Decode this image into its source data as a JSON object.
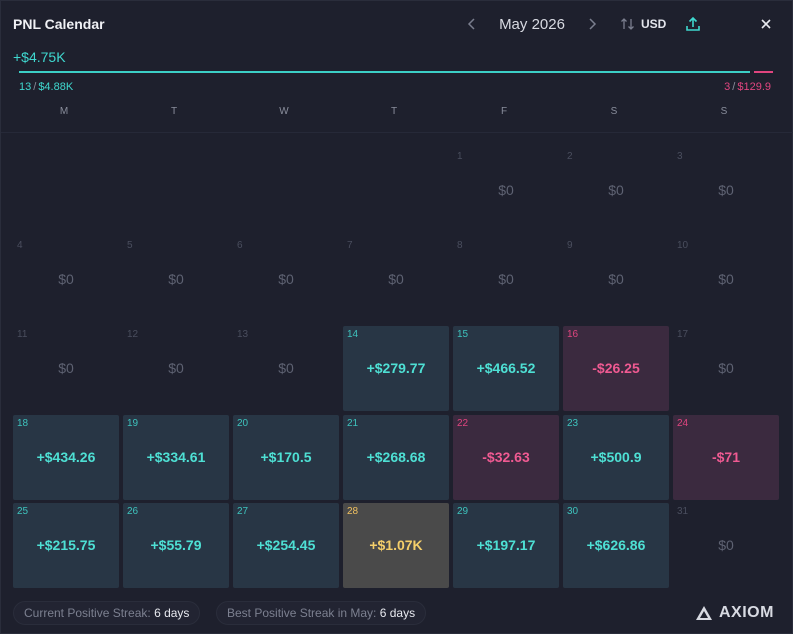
{
  "header": {
    "title": "PNL Calendar",
    "month": "May 2026",
    "prev_icon": "chevron-left-icon",
    "next_icon": "chevron-right-icon",
    "currency": "USD",
    "sort_icon": "sort-arrows-icon",
    "share_icon": "share-upload-icon",
    "close_icon": "close-icon"
  },
  "summary": {
    "total": "+$4.75K",
    "positive_days": "13",
    "positive_amount": "$4.88K",
    "negative_days": "3",
    "negative_amount": "$129.9",
    "positive_share": 0.974
  },
  "weekdays": [
    "M",
    "T",
    "W",
    "T",
    "F",
    "S",
    "S"
  ],
  "days": [
    {
      "day": "1",
      "value": "$0",
      "status": "zero"
    },
    {
      "day": "2",
      "value": "$0",
      "status": "zero"
    },
    {
      "day": "3",
      "value": "$0",
      "status": "zero"
    },
    {
      "day": "4",
      "value": "$0",
      "status": "zero"
    },
    {
      "day": "5",
      "value": "$0",
      "status": "zero"
    },
    {
      "day": "6",
      "value": "$0",
      "status": "zero"
    },
    {
      "day": "7",
      "value": "$0",
      "status": "zero"
    },
    {
      "day": "8",
      "value": "$0",
      "status": "zero"
    },
    {
      "day": "9",
      "value": "$0",
      "status": "zero"
    },
    {
      "day": "10",
      "value": "$0",
      "status": "zero"
    },
    {
      "day": "11",
      "value": "$0",
      "status": "zero"
    },
    {
      "day": "12",
      "value": "$0",
      "status": "zero"
    },
    {
      "day": "13",
      "value": "$0",
      "status": "zero"
    },
    {
      "day": "14",
      "value": "+$279.77",
      "status": "pos"
    },
    {
      "day": "15",
      "value": "+$466.52",
      "status": "pos"
    },
    {
      "day": "16",
      "value": "-$26.25",
      "status": "neg"
    },
    {
      "day": "17",
      "value": "$0",
      "status": "zero"
    },
    {
      "day": "18",
      "value": "+$434.26",
      "status": "pos"
    },
    {
      "day": "19",
      "value": "+$334.61",
      "status": "pos"
    },
    {
      "day": "20",
      "value": "+$170.5",
      "status": "pos"
    },
    {
      "day": "21",
      "value": "+$268.68",
      "status": "pos"
    },
    {
      "day": "22",
      "value": "-$32.63",
      "status": "neg"
    },
    {
      "day": "23",
      "value": "+$500.9",
      "status": "pos"
    },
    {
      "day": "24",
      "value": "-$71",
      "status": "neg"
    },
    {
      "day": "25",
      "value": "+$215.75",
      "status": "pos"
    },
    {
      "day": "26",
      "value": "+$55.79",
      "status": "pos"
    },
    {
      "day": "27",
      "value": "+$254.45",
      "status": "pos"
    },
    {
      "day": "28",
      "value": "+$1.07K",
      "status": "best"
    },
    {
      "day": "29",
      "value": "+$197.17",
      "status": "pos"
    },
    {
      "day": "30",
      "value": "+$626.86",
      "status": "pos"
    },
    {
      "day": "31",
      "value": "$0",
      "status": "zero"
    }
  ],
  "footer": {
    "current_streak_label": "Current Positive Streak:",
    "current_streak_value": "6 days",
    "best_streak_label": "Best Positive Streak in May:",
    "best_streak_value": "6 days",
    "brand": "AXIOM",
    "brand_icon": "axiom-logo-icon"
  },
  "colors": {
    "positive": "#4ee0d4",
    "negative": "#f05a92",
    "best": "#f5cf6a",
    "background": "#1e202d"
  }
}
